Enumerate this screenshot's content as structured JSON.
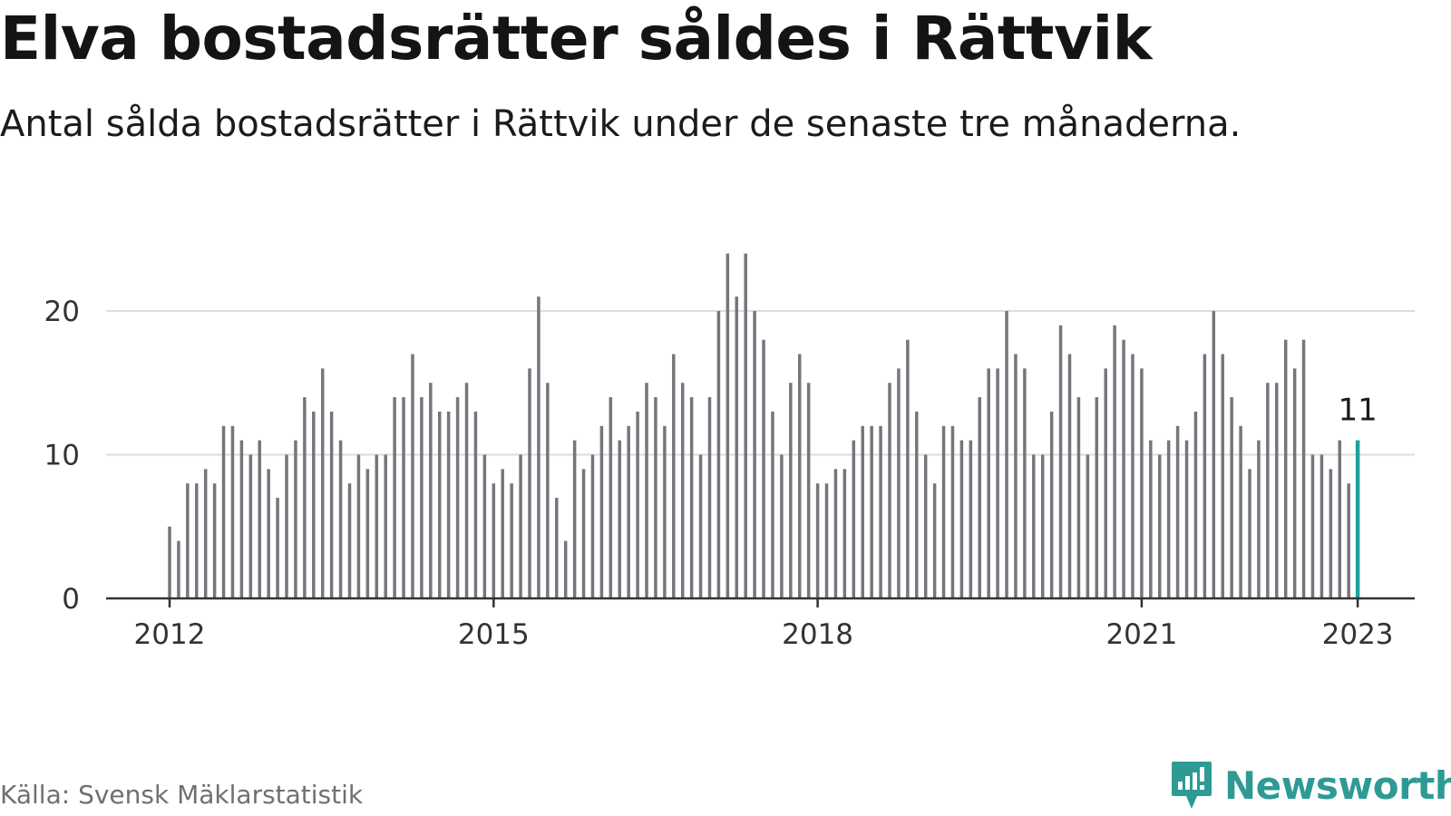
{
  "title": "Elva bostadsrätter såldes i Rättvik",
  "subtitle": "Antal sålda bostadsrätter i Rättvik under de senaste tre månaderna.",
  "source": "Källa: Svensk Mäklarstatistik",
  "brand": "Newsworthy",
  "colors": {
    "bar": "#76757c",
    "highlight": "#1aa39a",
    "grid": "#dddddd",
    "axis": "#333333",
    "brand": "#2e9a94"
  },
  "chart_data": {
    "type": "bar",
    "start": "2012-01",
    "values": [
      5,
      4,
      8,
      8,
      9,
      8,
      12,
      12,
      11,
      10,
      11,
      9,
      7,
      10,
      11,
      14,
      13,
      16,
      13,
      11,
      8,
      10,
      9,
      10,
      10,
      14,
      14,
      17,
      14,
      15,
      13,
      13,
      14,
      15,
      13,
      10,
      8,
      9,
      8,
      10,
      16,
      21,
      15,
      7,
      4,
      11,
      9,
      10,
      12,
      14,
      11,
      12,
      13,
      15,
      14,
      12,
      17,
      15,
      14,
      10,
      14,
      20,
      24,
      21,
      24,
      20,
      18,
      13,
      10,
      15,
      17,
      15,
      8,
      8,
      9,
      9,
      11,
      12,
      12,
      12,
      15,
      16,
      18,
      13,
      10,
      8,
      12,
      12,
      11,
      11,
      14,
      16,
      16,
      20,
      17,
      16,
      10,
      10,
      13,
      19,
      17,
      14,
      10,
      14,
      16,
      19,
      18,
      17,
      16,
      11,
      10,
      11,
      12,
      11,
      13,
      17,
      20,
      17,
      14,
      12,
      9,
      11,
      15,
      15,
      18,
      16,
      18,
      10,
      10,
      9,
      11,
      8,
      11
    ],
    "highlight_last": true,
    "last_label": "11",
    "yticks": [
      0,
      10,
      20
    ],
    "ylim": [
      0,
      24
    ],
    "xticks": [
      "2012",
      "2015",
      "2018",
      "2021",
      "2023"
    ],
    "grid": true
  }
}
